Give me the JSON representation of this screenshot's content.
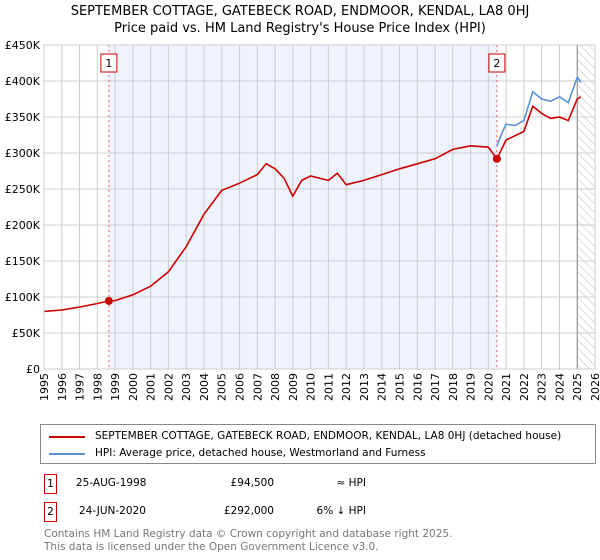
{
  "chart_data": {
    "type": "line",
    "title": "SEPTEMBER COTTAGE, GATEBECK ROAD, ENDMOOR, KENDAL, LA8 0HJ",
    "subtitle": "Price paid vs. HM Land Registry's House Price Index (HPI)",
    "xlim": [
      1995,
      2026
    ],
    "ylim": [
      0,
      450000
    ],
    "x_ticks": [
      "1995",
      "1996",
      "1997",
      "1998",
      "1999",
      "2000",
      "2001",
      "2002",
      "2003",
      "2004",
      "2005",
      "2006",
      "2007",
      "2008",
      "2009",
      "2010",
      "2011",
      "2012",
      "2013",
      "2014",
      "2015",
      "2016",
      "2017",
      "2018",
      "2019",
      "2020",
      "2021",
      "2022",
      "2023",
      "2024",
      "2025",
      "2026"
    ],
    "y_ticks": [
      {
        "v": 0,
        "label": "£0"
      },
      {
        "v": 50000,
        "label": "£50K"
      },
      {
        "v": 100000,
        "label": "£100K"
      },
      {
        "v": 150000,
        "label": "£150K"
      },
      {
        "v": 200000,
        "label": "£200K"
      },
      {
        "v": 250000,
        "label": "£250K"
      },
      {
        "v": 300000,
        "label": "£300K"
      },
      {
        "v": 350000,
        "label": "£350K"
      },
      {
        "v": 400000,
        "label": "£400K"
      },
      {
        "v": 450000,
        "label": "£450K"
      }
    ],
    "grid": true,
    "series": [
      {
        "name": "SEPTEMBER COTTAGE, GATEBECK ROAD, ENDMOOR, KENDAL, LA8 0HJ (detached house)",
        "color": "#cc0000",
        "x": [
          1995,
          1996,
          1997,
          1998,
          1998.65,
          1999,
          2000,
          2001,
          2002,
          2003,
          2004,
          2005,
          2006,
          2007,
          2007.5,
          2008,
          2008.5,
          2009,
          2009.5,
          2010,
          2011,
          2011.5,
          2012,
          2013,
          2014,
          2015,
          2016,
          2017,
          2018,
          2019,
          2020,
          2020.48,
          2021,
          2022,
          2022.5,
          2023,
          2023.5,
          2024,
          2024.5,
          2025,
          2025.2
        ],
        "y": [
          80000,
          82000,
          86000,
          91000,
          94500,
          95000,
          103000,
          115000,
          135000,
          170000,
          215000,
          248000,
          258000,
          270000,
          285000,
          278000,
          265000,
          240000,
          262000,
          268000,
          262000,
          272000,
          256000,
          262000,
          270000,
          278000,
          285000,
          292000,
          305000,
          310000,
          308000,
          292000,
          318000,
          330000,
          365000,
          355000,
          348000,
          350000,
          345000,
          375000,
          378000
        ]
      },
      {
        "name": "HPI: Average price, detached house, Westmorland and Furness",
        "color": "#5b8fd6",
        "x": [
          2020.48,
          2020.8,
          2021,
          2021.5,
          2022,
          2022.5,
          2023,
          2023.5,
          2024,
          2024.5,
          2025,
          2025.2
        ],
        "y": [
          310000,
          330000,
          340000,
          338000,
          345000,
          385000,
          375000,
          372000,
          378000,
          370000,
          405000,
          398000
        ]
      }
    ],
    "annotations": [
      {
        "id": "1",
        "x": 1998.65,
        "y": 94500,
        "date": "25-AUG-1998",
        "price": "£94,500",
        "hpi": "≈ HPI"
      },
      {
        "id": "2",
        "x": 2020.48,
        "y": 292000,
        "date": "24-JUN-2020",
        "price": "£292,000",
        "hpi": "6% ↓ HPI"
      }
    ],
    "hatch_from": 2025.0
  },
  "legend": {
    "property": "SEPTEMBER COTTAGE, GATEBECK ROAD, ENDMOOR, KENDAL, LA8 0HJ (detached house)",
    "hpi": "HPI: Average price, detached house, Westmorland and Furness"
  },
  "footer": {
    "line1": "Contains HM Land Registry data © Crown copyright and database right 2025.",
    "line2": "This data is licensed under the Open Government Licence v3.0."
  }
}
